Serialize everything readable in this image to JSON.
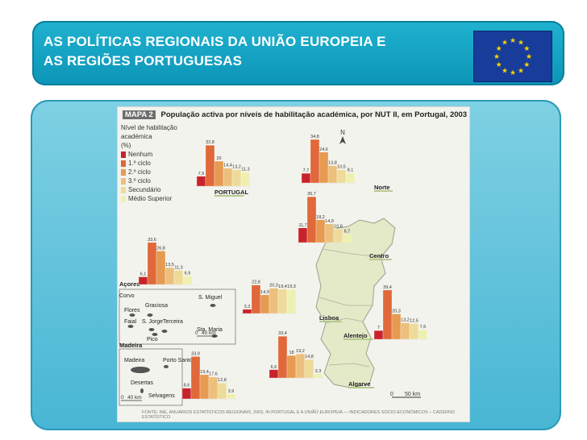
{
  "slide": {
    "title_line1": "AS POLÍTICAS REGIONAIS DA UNIÃO EUROPEIA E",
    "title_line2": "AS REGIÕES PORTUGUESAS",
    "accent": "#1aa6c8"
  },
  "map": {
    "badge": "MAPA 2",
    "title": "População activa por níveis de habilitação académica, por NUT II, em Portugal, 2003",
    "legend_title": "Nível de habilitação\nacadémica\n(%)",
    "footer": "FONTE: INE, ANUÁRIOS ESTATÍSTICOS REGIONAIS, 2003, IN PORTUGAL E A UNIÃO EUROPEIA — INDICADORES SÓCIO-ECONÓMICOS – CADERNO ESTATÍSTICO",
    "north_label": "N",
    "scale_labels": [
      "0",
      "50 km"
    ],
    "azores_label": "Açores",
    "madeira_label": "Madeira",
    "azores_islands": [
      "Corvo",
      "Flores",
      "Faial",
      "Graciosa",
      "S. Jorge",
      "Terceira",
      "Pico",
      "S. Miguel",
      "Sta. Maria"
    ],
    "azores_scale": [
      "0",
      "40 km"
    ],
    "madeira_islands": [
      "Madeira",
      "Porto Santo",
      "Desertas",
      "Selvagens"
    ],
    "madeira_scale": [
      "0",
      "40 km"
    ]
  },
  "chart_data": {
    "type": "bar",
    "title": "População activa por níveis de habilitação académica, por NUT II, em Portugal, 2003",
    "categories": [
      "Nenhum",
      "1.º ciclo",
      "2.º ciclo",
      "3.º ciclo",
      "Secundário",
      "Médio Superior"
    ],
    "colors": [
      "#c8232b",
      "#e0683a",
      "#e69a52",
      "#ecc07c",
      "#eedb9a",
      "#eef0b2"
    ],
    "regions": [
      {
        "name": "PORTUGAL",
        "values": [
          7.9,
          32.8,
          20.0,
          14.4,
          13.2,
          11.3
        ]
      },
      {
        "name": "Norte",
        "values": [
          7.7,
          34.8,
          24.6,
          13.8,
          10.5,
          8.1
        ]
      },
      {
        "name": "Centro",
        "values": [
          11.7,
          36.7,
          18.2,
          14.9,
          10.8,
          6.7
        ]
      },
      {
        "name": "Lisboa",
        "values": [
          3.3,
          22.8,
          14.9,
          20.3,
          19.4,
          19.3
        ]
      },
      {
        "name": "Alentejo",
        "values": [
          7.0,
          39.4,
          20.3,
          13.2,
          12.5,
          7.6
        ]
      },
      {
        "name": "Algarve",
        "values": [
          6.6,
          33.4,
          18.0,
          19.2,
          14.8,
          3.3
        ]
      },
      {
        "name": "Açores",
        "values": [
          6.1,
          33.6,
          26.8,
          13.5,
          11.3,
          6.9
        ]
      },
      {
        "name": "Madeira",
        "values": [
          8.6,
          33.9,
          19.4,
          17.6,
          12.8,
          3.9
        ]
      }
    ]
  }
}
